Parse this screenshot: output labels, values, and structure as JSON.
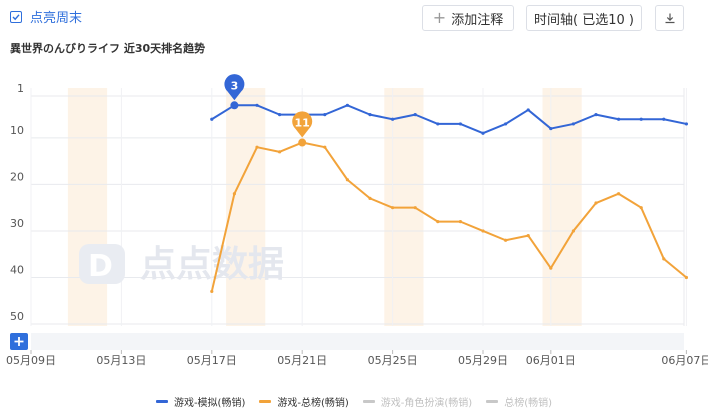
{
  "toolbar": {
    "weekend_label": "点亮周末",
    "weekend_checked": true,
    "add_annotation_label": "添加注释",
    "timeline_label": "时间轴( 已选10 )"
  },
  "chart_title": "異世界のんびりライフ 近30天排名趋势",
  "watermark": "点点数据",
  "colors": {
    "accent": "#2f6fdc",
    "series_blue": "#3366d6",
    "series_orange": "#f2a33a",
    "weekend": "#fdf3e7",
    "grid": "#e8eaee",
    "inactive_legend": "#c8c8c8"
  },
  "chart_data": {
    "type": "line",
    "x_tick_labels": [
      "05月09日",
      "05月13日",
      "05月17日",
      "05月21日",
      "05月25日",
      "05月29日",
      "06月01日",
      "06月07日"
    ],
    "y_tick_labels": [
      "1",
      "10",
      "20",
      "30",
      "40",
      "50"
    ],
    "ylim": [
      1,
      50
    ],
    "y_reversed": true,
    "weekend_bands": [
      [
        "05月11日",
        "05月12日"
      ],
      [
        "05月18日",
        "05月19日"
      ],
      [
        "05月25日",
        "05月26日"
      ],
      [
        "06月01日",
        "06月02日"
      ]
    ],
    "series": [
      {
        "name": "游戏-模拟(畅销)",
        "color": "#3366d6",
        "active": true,
        "values": [
          [
            "05月17日",
            6
          ],
          [
            "05月18日",
            3
          ],
          [
            "05月19日",
            3
          ],
          [
            "05月20日",
            5
          ],
          [
            "05月21日",
            5
          ],
          [
            "05月22日",
            5
          ],
          [
            "05月23日",
            3
          ],
          [
            "05月24日",
            5
          ],
          [
            "05月25日",
            6
          ],
          [
            "05月26日",
            5
          ],
          [
            "05月27日",
            7
          ],
          [
            "05月28日",
            7
          ],
          [
            "05月29日",
            9
          ],
          [
            "05月30日",
            7
          ],
          [
            "05月31日",
            4
          ],
          [
            "06月01日",
            8
          ],
          [
            "06月02日",
            7
          ],
          [
            "06月03日",
            5
          ],
          [
            "06月04日",
            6
          ],
          [
            "06月05日",
            6
          ],
          [
            "06月06日",
            6
          ],
          [
            "06月07日",
            7
          ]
        ],
        "marker": {
          "date": "05月18日",
          "label": "3"
        }
      },
      {
        "name": "游戏-总榜(畅销)",
        "color": "#f2a33a",
        "active": true,
        "values": [
          [
            "05月17日",
            43
          ],
          [
            "05月18日",
            22
          ],
          [
            "05月19日",
            12
          ],
          [
            "05月20日",
            13
          ],
          [
            "05月21日",
            11
          ],
          [
            "05月22日",
            12
          ],
          [
            "05月23日",
            19
          ],
          [
            "05月24日",
            23
          ],
          [
            "05月25日",
            25
          ],
          [
            "05月26日",
            25
          ],
          [
            "05月27日",
            28
          ],
          [
            "05月28日",
            28
          ],
          [
            "05月29日",
            30
          ],
          [
            "05月30日",
            32
          ],
          [
            "05月31日",
            31
          ],
          [
            "06月01日",
            38
          ],
          [
            "06月02日",
            30
          ],
          [
            "06月03日",
            24
          ],
          [
            "06月04日",
            22
          ],
          [
            "06月05日",
            25
          ],
          [
            "06月06日",
            36
          ],
          [
            "06月07日",
            40
          ]
        ],
        "marker": {
          "date": "05月21日",
          "label": "11"
        }
      },
      {
        "name": "游戏-角色扮演(畅销)",
        "color": "#c8c8c8",
        "active": false,
        "values": []
      },
      {
        "name": "总榜(畅销)",
        "color": "#c8c8c8",
        "active": false,
        "values": []
      }
    ]
  }
}
